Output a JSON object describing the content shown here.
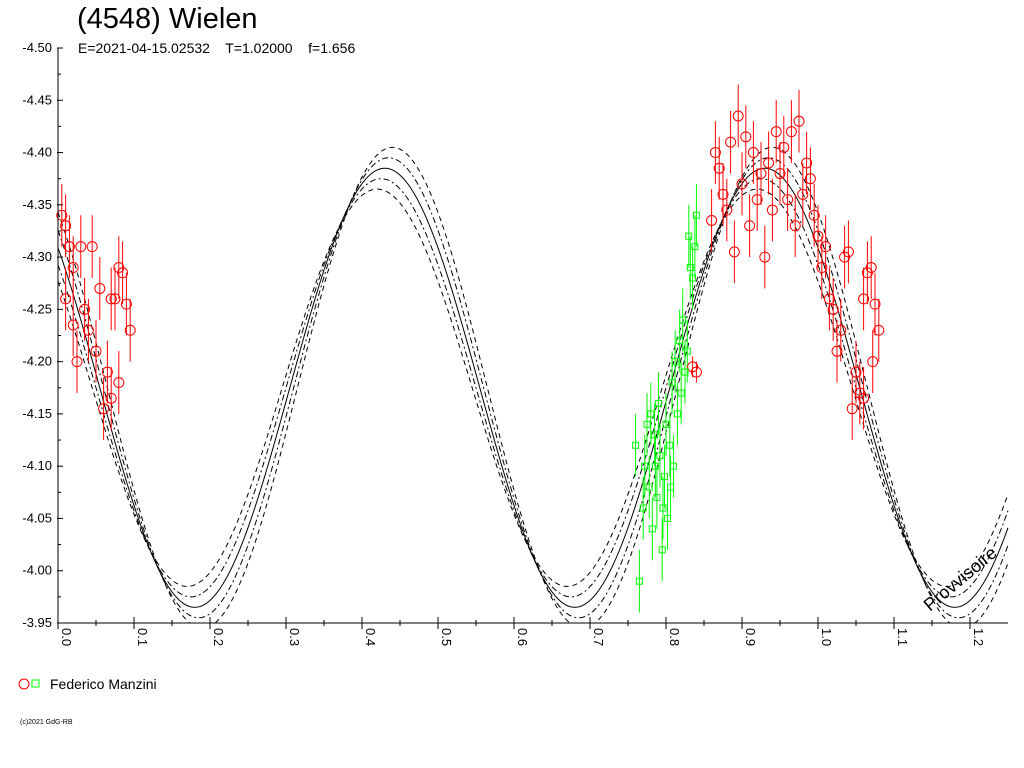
{
  "chart_data": {
    "type": "scatter",
    "title": "(4548) Wielen",
    "subtitle": "E=2021-04-15.02532    T=1.02000    f=1.656",
    "xlabel": "",
    "ylabel": "",
    "xlim": [
      0.0,
      1.25
    ],
    "ylim": [
      -4.5,
      -3.95
    ],
    "x_ticks": [
      "0.0",
      "0.1",
      "0.2",
      "0.3",
      "0.4",
      "0.5",
      "0.6",
      "0.7",
      "0.8",
      "0.9",
      "1.0",
      "1.1",
      "1.2"
    ],
    "y_ticks": [
      "-4.50",
      "-4.45",
      "-4.40",
      "-4.35",
      "-4.30",
      "-4.25",
      "-4.20",
      "-4.15",
      "-4.10",
      "-4.05",
      "-4.00",
      "-3.95"
    ],
    "grid": false,
    "watermark": "Provvisoire",
    "model_curve": {
      "mean": -4.175,
      "amplitude": 0.21,
      "max_phase": 0.43,
      "period_phase": 0.5
    },
    "series": [
      {
        "name": "Federico Manzini",
        "marker": "circle",
        "color": "#ff0000",
        "points": [
          [
            0.005,
            -4.34,
            0.03
          ],
          [
            0.01,
            -4.33,
            0.03
          ],
          [
            0.015,
            -4.31,
            0.03
          ],
          [
            0.02,
            -4.29,
            0.03
          ],
          [
            0.01,
            -4.26,
            0.03
          ],
          [
            0.02,
            -4.235,
            0.03
          ],
          [
            0.025,
            -4.2,
            0.03
          ],
          [
            0.03,
            -4.31,
            0.03
          ],
          [
            0.035,
            -4.25,
            0.03
          ],
          [
            0.04,
            -4.23,
            0.03
          ],
          [
            0.045,
            -4.31,
            0.03
          ],
          [
            0.05,
            -4.21,
            0.03
          ],
          [
            0.055,
            -4.27,
            0.03
          ],
          [
            0.06,
            -4.155,
            0.03
          ],
          [
            0.065,
            -4.19,
            0.03
          ],
          [
            0.07,
            -4.165,
            0.03
          ],
          [
            0.075,
            -4.26,
            0.03
          ],
          [
            0.08,
            -4.29,
            0.03
          ],
          [
            0.085,
            -4.285,
            0.03
          ],
          [
            0.09,
            -4.255,
            0.03
          ],
          [
            0.095,
            -4.23,
            0.03
          ],
          [
            0.08,
            -4.18,
            0.03
          ],
          [
            0.07,
            -4.26,
            0.03
          ],
          [
            0.835,
            -4.195,
            0.01
          ],
          [
            0.84,
            -4.19,
            0.01
          ],
          [
            0.86,
            -4.335,
            0.03
          ],
          [
            0.865,
            -4.4,
            0.03
          ],
          [
            0.87,
            -4.385,
            0.03
          ],
          [
            0.875,
            -4.36,
            0.03
          ],
          [
            0.88,
            -4.345,
            0.03
          ],
          [
            0.885,
            -4.41,
            0.03
          ],
          [
            0.89,
            -4.305,
            0.03
          ],
          [
            0.895,
            -4.435,
            0.03
          ],
          [
            0.9,
            -4.37,
            0.03
          ],
          [
            0.905,
            -4.415,
            0.03
          ],
          [
            0.91,
            -4.33,
            0.03
          ],
          [
            0.915,
            -4.4,
            0.03
          ],
          [
            0.92,
            -4.355,
            0.03
          ],
          [
            0.925,
            -4.38,
            0.03
          ],
          [
            0.93,
            -4.3,
            0.03
          ],
          [
            0.935,
            -4.39,
            0.03
          ],
          [
            0.94,
            -4.345,
            0.03
          ],
          [
            0.945,
            -4.42,
            0.03
          ],
          [
            0.95,
            -4.38,
            0.03
          ],
          [
            0.955,
            -4.405,
            0.03
          ],
          [
            0.96,
            -4.355,
            0.03
          ],
          [
            0.965,
            -4.42,
            0.03
          ],
          [
            0.97,
            -4.33,
            0.03
          ],
          [
            0.975,
            -4.43,
            0.03
          ],
          [
            0.98,
            -4.36,
            0.03
          ],
          [
            0.985,
            -4.39,
            0.03
          ],
          [
            0.99,
            -4.375,
            0.03
          ],
          [
            0.995,
            -4.34,
            0.03
          ],
          [
            1.0,
            -4.32,
            0.03
          ],
          [
            1.005,
            -4.29,
            0.03
          ],
          [
            1.01,
            -4.31,
            0.03
          ],
          [
            1.015,
            -4.26,
            0.03
          ],
          [
            1.02,
            -4.25,
            0.03
          ],
          [
            1.025,
            -4.21,
            0.03
          ],
          [
            1.03,
            -4.23,
            0.03
          ],
          [
            1.035,
            -4.3,
            0.03
          ],
          [
            1.04,
            -4.305,
            0.03
          ],
          [
            1.045,
            -4.155,
            0.03
          ],
          [
            1.05,
            -4.19,
            0.03
          ],
          [
            1.055,
            -4.17,
            0.03
          ],
          [
            1.06,
            -4.26,
            0.03
          ],
          [
            1.065,
            -4.285,
            0.03
          ],
          [
            1.07,
            -4.29,
            0.03
          ],
          [
            1.075,
            -4.255,
            0.03
          ],
          [
            1.08,
            -4.23,
            0.03
          ],
          [
            1.06,
            -4.165,
            0.03
          ],
          [
            1.072,
            -4.2,
            0.03
          ]
        ]
      },
      {
        "name": "Federico Manzini",
        "marker": "square",
        "color": "#00ff00",
        "points": [
          [
            0.76,
            -4.12,
            0.03
          ],
          [
            0.765,
            -3.99,
            0.03
          ],
          [
            0.77,
            -4.06,
            0.03
          ],
          [
            0.772,
            -4.1,
            0.03
          ],
          [
            0.775,
            -4.14,
            0.03
          ],
          [
            0.778,
            -4.08,
            0.03
          ],
          [
            0.78,
            -4.15,
            0.03
          ],
          [
            0.782,
            -4.04,
            0.03
          ],
          [
            0.785,
            -4.13,
            0.03
          ],
          [
            0.788,
            -4.07,
            0.03
          ],
          [
            0.79,
            -4.16,
            0.03
          ],
          [
            0.792,
            -4.11,
            0.03
          ],
          [
            0.795,
            -4.02,
            0.03
          ],
          [
            0.798,
            -4.09,
            0.03
          ],
          [
            0.8,
            -4.14,
            0.03
          ],
          [
            0.802,
            -4.05,
            0.03
          ],
          [
            0.805,
            -4.12,
            0.03
          ],
          [
            0.808,
            -4.18,
            0.03
          ],
          [
            0.81,
            -4.1,
            0.03
          ],
          [
            0.812,
            -4.2,
            0.03
          ],
          [
            0.815,
            -4.15,
            0.03
          ],
          [
            0.818,
            -4.22,
            0.03
          ],
          [
            0.82,
            -4.17,
            0.03
          ],
          [
            0.822,
            -4.24,
            0.03
          ],
          [
            0.825,
            -4.19,
            0.03
          ],
          [
            0.828,
            -4.21,
            0.03
          ],
          [
            0.83,
            -4.32,
            0.03
          ],
          [
            0.832,
            -4.29,
            0.03
          ],
          [
            0.835,
            -4.28,
            0.03
          ],
          [
            0.838,
            -4.31,
            0.03
          ],
          [
            0.84,
            -4.34,
            0.03
          ],
          [
            0.786,
            -4.1,
            0.03
          ],
          [
            0.796,
            -4.06,
            0.03
          ],
          [
            0.806,
            -4.08,
            0.03
          ]
        ]
      }
    ]
  },
  "legend": {
    "label": "Federico Manzini"
  },
  "copyright": "(c)2021 GdG-RB"
}
